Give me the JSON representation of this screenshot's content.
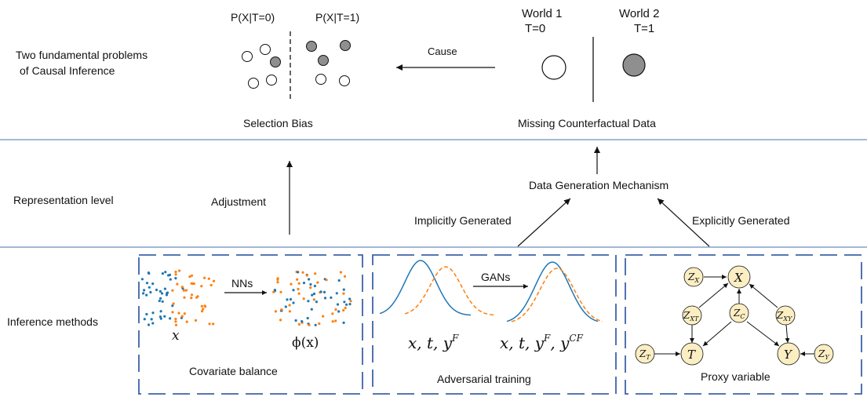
{
  "left_labels": {
    "problems_line1": "Two fundamental problems",
    "problems_line2": "of Causal Inference",
    "representation": "Representation level",
    "inference": "Inference methods"
  },
  "selection_bias": {
    "t0_label": "P(X|T=0)",
    "t1_label": "P(X|T=1)",
    "caption": "Selection Bias"
  },
  "cause_label": "Cause",
  "missing_data": {
    "world1_line1": "World 1",
    "world1_line2": "T=0",
    "world2_line1": "World 2",
    "world2_line2": "T=1",
    "caption": "Missing Counterfactual Data"
  },
  "adjustment_label": "Adjustment",
  "data_generation_label": "Data Generation Mechanism",
  "implicit_label": "Implicitly Generated",
  "explicit_label": "Explicitly Generated",
  "covariate_box": {
    "arrow_label": "NNs",
    "left_var": "x",
    "right_var": "ϕ(x)",
    "caption": "Covariate balance"
  },
  "adversarial_box": {
    "arrow_label": "GANs",
    "left_formula": "x, t, y",
    "left_sup": "F",
    "right_formula": "x, t, y",
    "right_sup1": "F",
    "right_mid": ", y",
    "right_sup2": "CF",
    "caption": "Adversarial training"
  },
  "proxy_box": {
    "caption": "Proxy variable",
    "nodes": {
      "zx": "Z",
      "zx_sub": "X",
      "x": "X",
      "zxt": "Z",
      "zxt_sub": "XT",
      "zc": "Z",
      "zc_sub": "C",
      "zxy": "Z",
      "zxy_sub": "XY",
      "zt": "Z",
      "zt_sub": "T",
      "t": "T",
      "y": "Y",
      "zy": "Z",
      "zy_sub": "Y"
    }
  },
  "colors": {
    "divider": "#6d8fbf",
    "box_border": "#3e63a8",
    "blue": "#1f77b4",
    "orange": "#ff7f0e",
    "node_fill": "#fbeec3",
    "gray_circle": "#9a9a9a"
  }
}
